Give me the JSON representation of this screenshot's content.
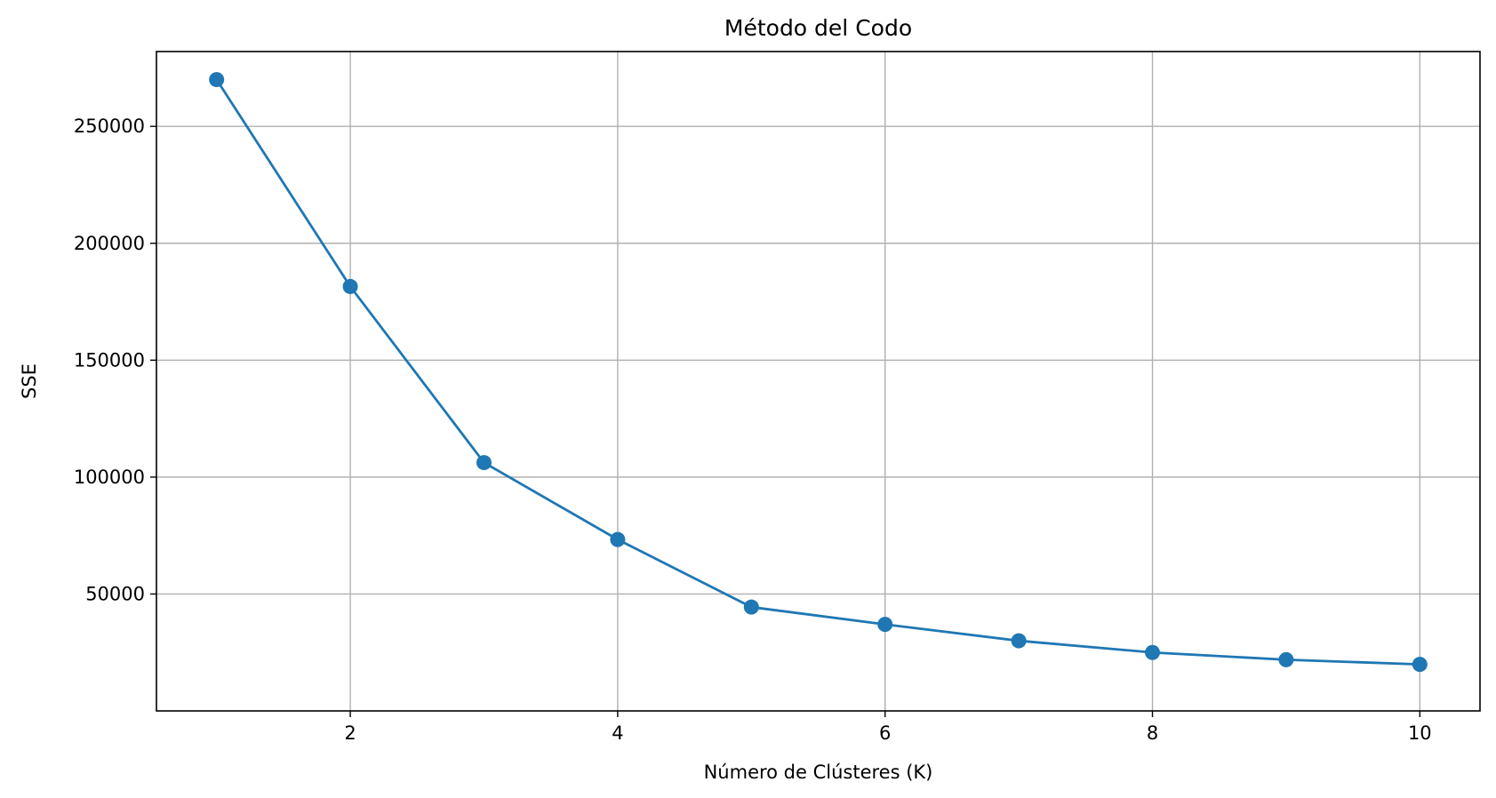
{
  "chart_data": {
    "type": "line",
    "title": "Método del Codo",
    "xlabel": "Número de Clústeres (K)",
    "ylabel": "SSE",
    "x": [
      1,
      2,
      3,
      4,
      5,
      6,
      7,
      8,
      9,
      10
    ],
    "series": [
      {
        "values": [
          270000,
          181500,
          106200,
          73300,
          44400,
          37000,
          30000,
          25000,
          21900,
          19900
        ],
        "color": "#1f77b4",
        "marker": "circle"
      }
    ],
    "xlim": [
      0.55,
      10.45
    ],
    "ylim": [
      0,
      282000
    ],
    "xticks": [
      2,
      4,
      6,
      8,
      10
    ],
    "yticks": [
      50000,
      100000,
      150000,
      200000,
      250000
    ],
    "grid": true,
    "legend": "none"
  },
  "colors": {
    "line": "#1f77b4",
    "grid": "#b0b0b0",
    "axes": "#000000",
    "background": "#ffffff"
  }
}
